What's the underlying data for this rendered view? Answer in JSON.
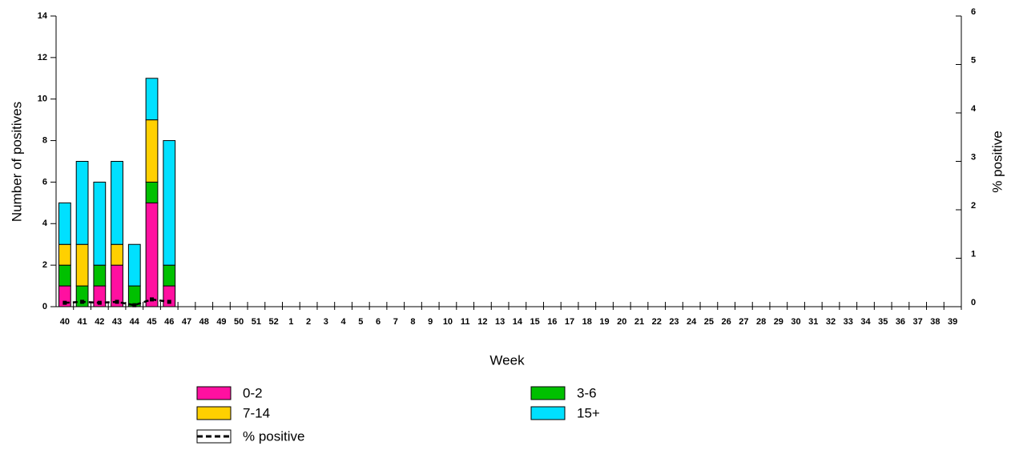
{
  "chart_data": {
    "type": "bar",
    "stacked": true,
    "y_label": "Number of positives",
    "y2_label": "% positive",
    "x_label": "Week",
    "categories": [
      "40",
      "41",
      "42",
      "43",
      "44",
      "45",
      "46",
      "47",
      "48",
      "49",
      "50",
      "51",
      "52",
      "1",
      "2",
      "3",
      "4",
      "5",
      "6",
      "7",
      "8",
      "9",
      "10",
      "11",
      "12",
      "13",
      "14",
      "15",
      "16",
      "17",
      "18",
      "19",
      "20",
      "21",
      "22",
      "23",
      "24",
      "25",
      "26",
      "27",
      "28",
      "29",
      "30",
      "31",
      "32",
      "33",
      "34",
      "35",
      "36",
      "37",
      "38",
      "39"
    ],
    "series": [
      {
        "name": "0-2",
        "color": "#ff10a0",
        "values": [
          1,
          0,
          1,
          2,
          0,
          5,
          1,
          null,
          null,
          null,
          null,
          null,
          null,
          null,
          null,
          null,
          null,
          null,
          null,
          null,
          null,
          null,
          null,
          null,
          null,
          null,
          null,
          null,
          null,
          null,
          null,
          null,
          null,
          null,
          null,
          null,
          null,
          null,
          null,
          null,
          null,
          null,
          null,
          null,
          null,
          null,
          null,
          null,
          null,
          null,
          null,
          null
        ]
      },
      {
        "name": "3-6",
        "color": "#00c000",
        "values": [
          1,
          1,
          1,
          0,
          1,
          1,
          1,
          null,
          null,
          null,
          null,
          null,
          null,
          null,
          null,
          null,
          null,
          null,
          null,
          null,
          null,
          null,
          null,
          null,
          null,
          null,
          null,
          null,
          null,
          null,
          null,
          null,
          null,
          null,
          null,
          null,
          null,
          null,
          null,
          null,
          null,
          null,
          null,
          null,
          null,
          null,
          null,
          null,
          null,
          null,
          null,
          null
        ]
      },
      {
        "name": "7-14",
        "color": "#ffd000",
        "values": [
          1,
          2,
          0,
          1,
          0,
          3,
          0,
          null,
          null,
          null,
          null,
          null,
          null,
          null,
          null,
          null,
          null,
          null,
          null,
          null,
          null,
          null,
          null,
          null,
          null,
          null,
          null,
          null,
          null,
          null,
          null,
          null,
          null,
          null,
          null,
          null,
          null,
          null,
          null,
          null,
          null,
          null,
          null,
          null,
          null,
          null,
          null,
          null,
          null,
          null,
          null,
          null
        ]
      },
      {
        "name": "15+",
        "color": "#00e0ff",
        "values": [
          2,
          4,
          4,
          4,
          2,
          2,
          6,
          null,
          null,
          null,
          null,
          null,
          null,
          null,
          null,
          null,
          null,
          null,
          null,
          null,
          null,
          null,
          null,
          null,
          null,
          null,
          null,
          null,
          null,
          null,
          null,
          null,
          null,
          null,
          null,
          null,
          null,
          null,
          null,
          null,
          null,
          null,
          null,
          null,
          null,
          null,
          null,
          null,
          null,
          null,
          null,
          null
        ]
      },
      {
        "name": "% positive",
        "type": "line",
        "axis": "y2",
        "color": "#000000",
        "values": [
          0.08,
          0.1,
          0.08,
          0.1,
          0.03,
          0.15,
          0.1,
          null,
          null,
          null,
          null,
          null,
          null,
          null,
          null,
          null,
          null,
          null,
          null,
          null,
          null,
          null,
          null,
          null,
          null,
          null,
          null,
          null,
          null,
          null,
          null,
          null,
          null,
          null,
          null,
          null,
          null,
          null,
          null,
          null,
          null,
          null,
          null,
          null,
          null,
          null,
          null,
          null,
          null,
          null,
          null,
          null
        ]
      }
    ],
    "ylim": [
      0,
      14
    ],
    "yticks": [
      0,
      2,
      4,
      6,
      8,
      10,
      12,
      14
    ],
    "y2lim": [
      0,
      6
    ],
    "y2ticks": [
      0,
      1,
      2,
      3,
      4,
      5,
      6
    ],
    "grid": false
  }
}
